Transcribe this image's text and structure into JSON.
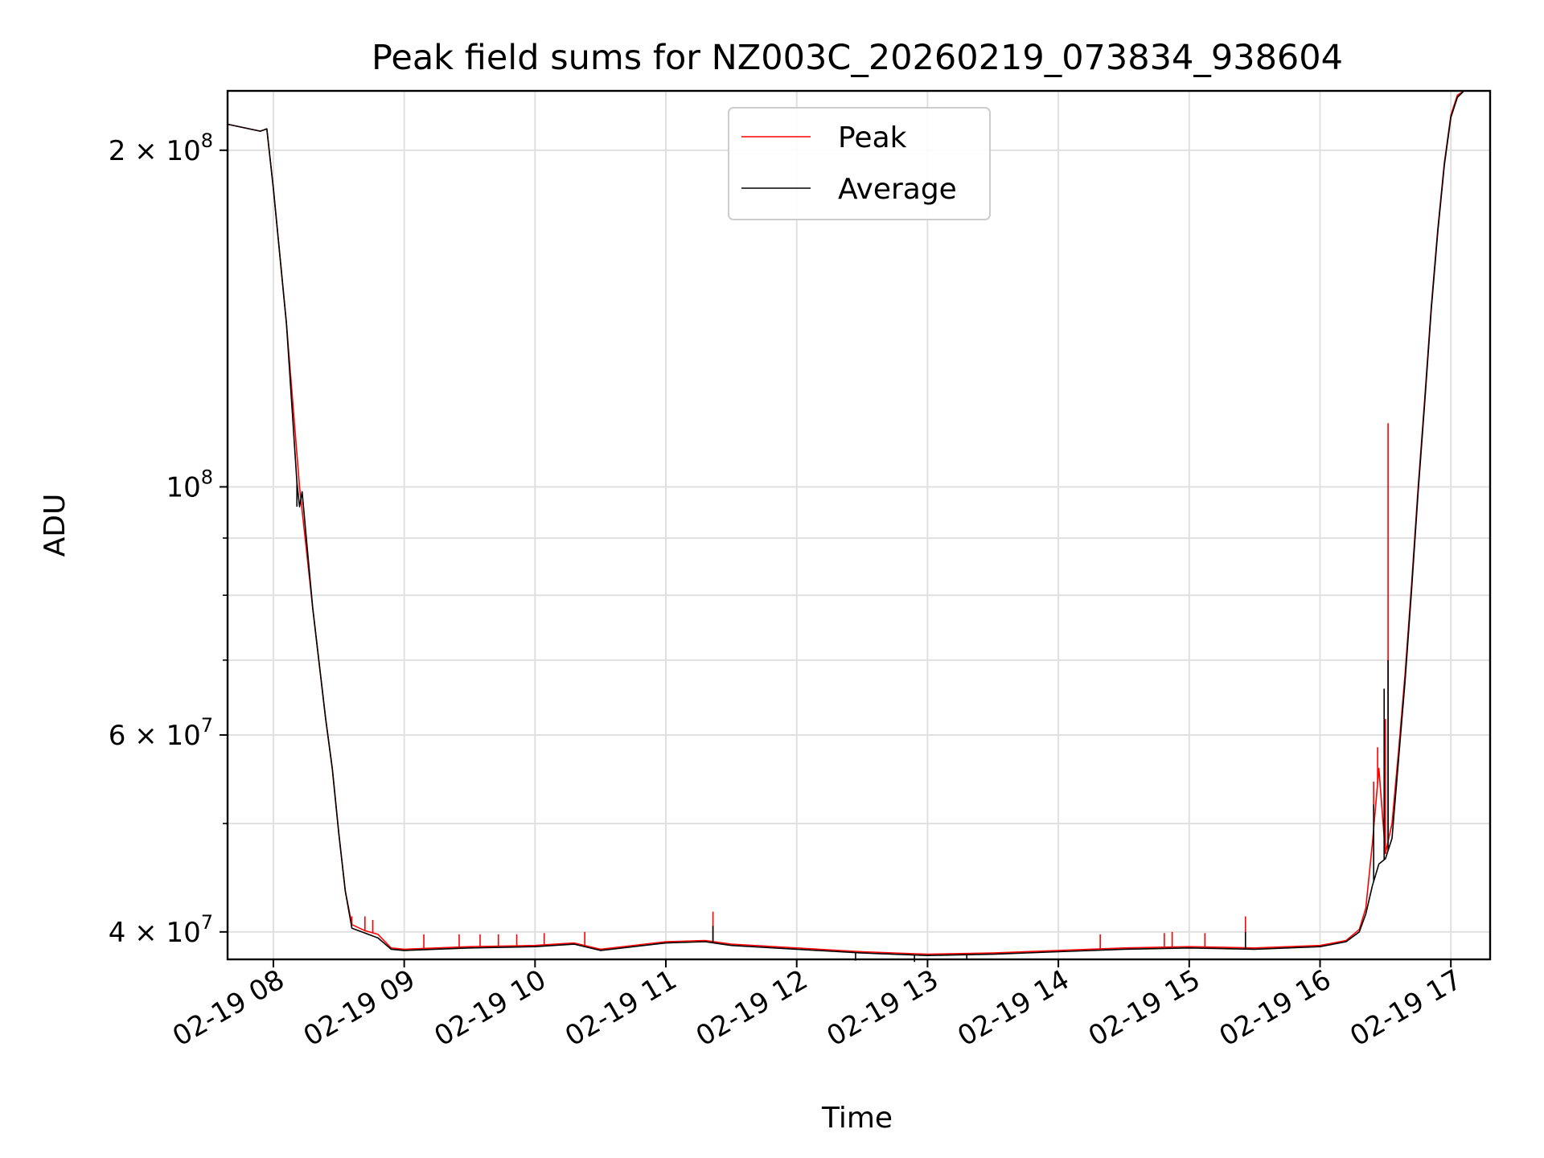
{
  "chart_data": {
    "type": "line",
    "title": "Peak field sums for NZ003C_20260219_073834_938604",
    "xlabel": "Time",
    "ylabel": "ADU",
    "yscale": "log",
    "grid": true,
    "legend_position": "upper-center",
    "x_unit": "hours since 02-19 00:00",
    "xlim": [
      7.65,
      17.3
    ],
    "ylim": [
      37800000,
      226000000
    ],
    "x_ticks": [
      {
        "value": 8,
        "label": "02-19 08"
      },
      {
        "value": 9,
        "label": "02-19 09"
      },
      {
        "value": 10,
        "label": "02-19 10"
      },
      {
        "value": 11,
        "label": "02-19 11"
      },
      {
        "value": 12,
        "label": "02-19 12"
      },
      {
        "value": 13,
        "label": "02-19 13"
      },
      {
        "value": 14,
        "label": "02-19 14"
      },
      {
        "value": 15,
        "label": "02-19 15"
      },
      {
        "value": 16,
        "label": "02-19 16"
      },
      {
        "value": 17,
        "label": "02-19 17"
      }
    ],
    "y_major_ticks": [
      {
        "value": 40000000,
        "mant": "4",
        "exp": "7"
      },
      {
        "value": 60000000,
        "mant": "6",
        "exp": "7"
      },
      {
        "value": 100000000,
        "mant": "",
        "exp": "8"
      },
      {
        "value": 200000000,
        "mant": "2",
        "exp": "8"
      }
    ],
    "y_minor_ticks": [
      50000000,
      70000000,
      80000000,
      90000000
    ],
    "series": [
      {
        "name": "Peak",
        "color": "#ff0000",
        "x": [
          7.65,
          7.9,
          7.95,
          8.0,
          8.1,
          8.2,
          8.3,
          8.4,
          8.45,
          8.5,
          8.55,
          8.6,
          8.7,
          8.8,
          8.9,
          9.0,
          9.5,
          10.0,
          10.3,
          10.5,
          11.0,
          11.3,
          11.5,
          12.0,
          12.5,
          13.0,
          13.5,
          14.0,
          14.5,
          15.0,
          15.5,
          16.0,
          16.2,
          16.3,
          16.35,
          16.4,
          16.45,
          16.5,
          16.55,
          16.6,
          16.65,
          16.7,
          16.75,
          16.8,
          16.85,
          16.9,
          16.95,
          17.0,
          17.05,
          17.1,
          17.3
        ],
        "y": [
          211000000,
          208000000,
          209000000,
          185000000,
          140000000,
          100000000,
          78000000,
          62000000,
          56000000,
          49000000,
          43500000,
          40600000,
          40100000,
          39800000,
          38700000,
          38600000,
          38800000,
          38900000,
          39100000,
          38600000,
          39200000,
          39300000,
          39000000,
          38700000,
          38400000,
          38200000,
          38300000,
          38500000,
          38700000,
          38800000,
          38700000,
          38900000,
          39300000,
          40200000,
          42000000,
          48000000,
          56000000,
          47000000,
          50000000,
          58000000,
          68000000,
          82000000,
          100000000,
          120000000,
          145000000,
          170000000,
          195000000,
          215000000,
          224000000,
          226000000,
          226000000
        ],
        "spikes": [
          {
            "x": 8.6,
            "y": 41300000
          },
          {
            "x": 8.7,
            "y": 41300000
          },
          {
            "x": 8.76,
            "y": 41000000
          },
          {
            "x": 9.15,
            "y": 39800000
          },
          {
            "x": 9.42,
            "y": 39800000
          },
          {
            "x": 9.58,
            "y": 39800000
          },
          {
            "x": 9.72,
            "y": 39800000
          },
          {
            "x": 9.86,
            "y": 39800000
          },
          {
            "x": 10.07,
            "y": 39900000
          },
          {
            "x": 10.38,
            "y": 40000000
          },
          {
            "x": 11.36,
            "y": 41700000
          },
          {
            "x": 14.32,
            "y": 39800000
          },
          {
            "x": 14.81,
            "y": 39900000
          },
          {
            "x": 14.87,
            "y": 40000000
          },
          {
            "x": 15.12,
            "y": 39900000
          },
          {
            "x": 15.43,
            "y": 41300000
          },
          {
            "x": 16.41,
            "y": 54500000
          },
          {
            "x": 16.44,
            "y": 58500000
          },
          {
            "x": 16.5,
            "y": 62000000
          },
          {
            "x": 16.52,
            "y": 114000000
          }
        ]
      },
      {
        "name": "Average",
        "color": "#000000",
        "x": [
          7.65,
          7.9,
          7.95,
          8.0,
          8.1,
          8.18,
          8.2,
          8.22,
          8.3,
          8.4,
          8.45,
          8.5,
          8.55,
          8.6,
          8.7,
          8.8,
          8.9,
          9.0,
          9.5,
          10.0,
          10.3,
          10.5,
          11.0,
          11.3,
          11.5,
          12.0,
          12.5,
          13.0,
          13.5,
          14.0,
          14.5,
          15.0,
          15.5,
          16.0,
          16.2,
          16.3,
          16.35,
          16.4,
          16.45,
          16.5,
          16.55,
          16.6,
          16.65,
          16.7,
          16.75,
          16.8,
          16.85,
          16.9,
          16.95,
          17.0,
          17.05,
          17.1,
          17.3
        ],
        "y": [
          211000000,
          208000000,
          209000000,
          185000000,
          140000000,
          101000000,
          96000000,
          99000000,
          78000000,
          62000000,
          56000000,
          49000000,
          43500000,
          40300000,
          39900000,
          39500000,
          38600000,
          38500000,
          38700000,
          38800000,
          39000000,
          38500000,
          39100000,
          39200000,
          38900000,
          38600000,
          38300000,
          38100000,
          38200000,
          38400000,
          38600000,
          38700000,
          38600000,
          38800000,
          39200000,
          40000000,
          41500000,
          44000000,
          46000000,
          46500000,
          48500000,
          57000000,
          67000000,
          81000000,
          99000000,
          119000000,
          144000000,
          169000000,
          194000000,
          214000000,
          223000000,
          226000000,
          226000000
        ],
        "spikes": [
          {
            "x": 8.18,
            "y": 96000000
          },
          {
            "x": 11.36,
            "y": 40500000
          },
          {
            "x": 15.43,
            "y": 40000000
          },
          {
            "x": 16.41,
            "y": 52000000
          },
          {
            "x": 16.49,
            "y": 66000000
          },
          {
            "x": 16.52,
            "y": 70000000
          }
        ],
        "dips": [
          {
            "x": 12.45,
            "y": 37700000
          },
          {
            "x": 12.9,
            "y": 37600000
          },
          {
            "x": 13.3,
            "y": 37800000
          }
        ]
      }
    ],
    "legend": [
      {
        "label": "Peak",
        "color": "#ff0000"
      },
      {
        "label": "Average",
        "color": "#000000"
      }
    ]
  }
}
